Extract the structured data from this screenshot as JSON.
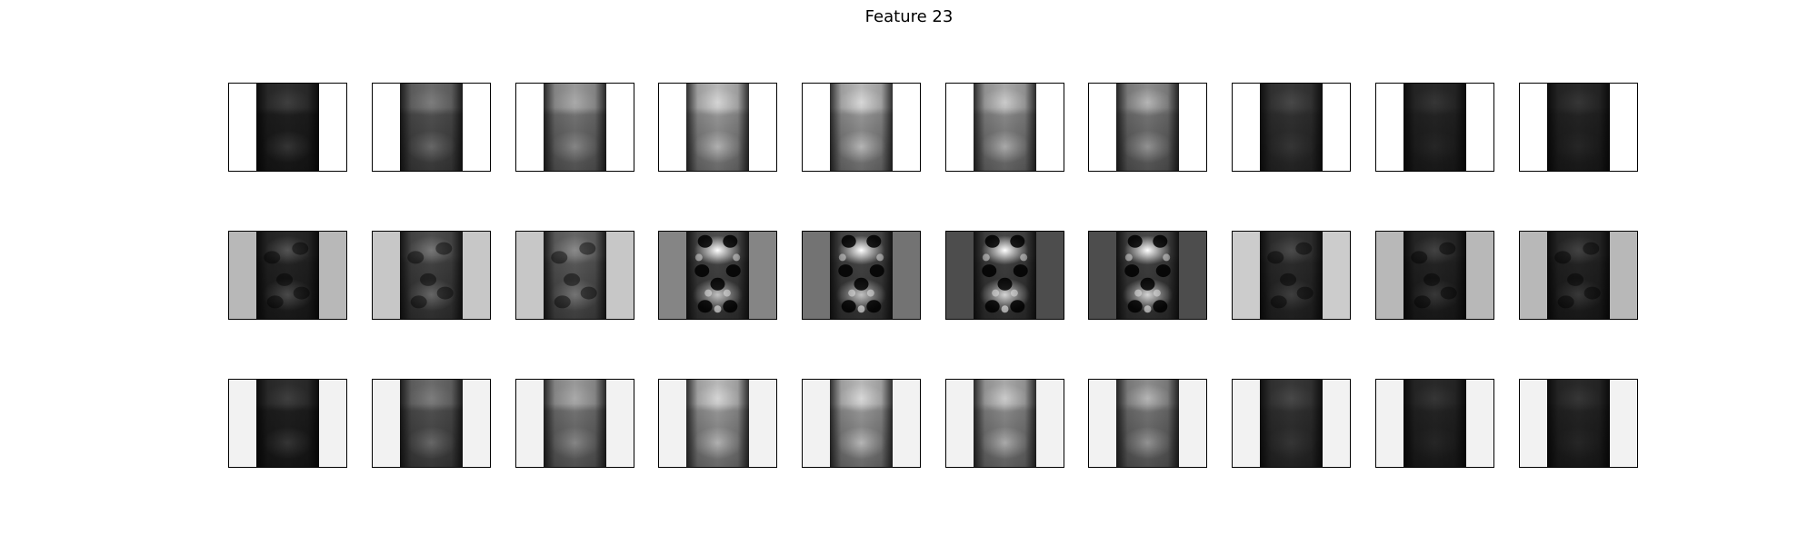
{
  "chart_data": {
    "type": "heatmap",
    "title": "Feature 23",
    "colormap": "grayscale",
    "rows": 3,
    "columns": 10,
    "panels": [
      [
        {
          "background": 1.0,
          "frame": "rgb",
          "stripe": 0.14,
          "top": 0.18,
          "top_blob": 0.04,
          "bottom_blob": 0.06,
          "mode": "smooth"
        },
        {
          "background": 1.0,
          "frame": "rgb",
          "stripe": 0.36,
          "top": 0.42,
          "top_blob": 0.06,
          "bottom_blob": 0.1,
          "mode": "smooth"
        },
        {
          "background": 1.0,
          "frame": "rgb",
          "stripe": 0.52,
          "top": 0.6,
          "top_blob": 0.08,
          "bottom_blob": 0.12,
          "mode": "smooth"
        },
        {
          "background": 1.0,
          "frame": "rgb",
          "stripe": 0.68,
          "top": 0.72,
          "top_blob": 0.2,
          "bottom_blob": 0.2,
          "mode": "smooth"
        },
        {
          "background": 1.0,
          "frame": "rgb",
          "stripe": 0.68,
          "top": 0.72,
          "top_blob": 0.22,
          "bottom_blob": 0.22,
          "mode": "smooth"
        },
        {
          "background": 1.0,
          "frame": "rgb",
          "stripe": 0.62,
          "top": 0.66,
          "top_blob": 0.2,
          "bottom_blob": 0.2,
          "mode": "smooth"
        },
        {
          "background": 1.0,
          "frame": "rgb",
          "stripe": 0.52,
          "top": 0.55,
          "top_blob": 0.18,
          "bottom_blob": 0.16,
          "mode": "smooth"
        },
        {
          "background": 1.0,
          "frame": "rgb",
          "stripe": 0.22,
          "top": 0.22,
          "top_blob": 0.04,
          "bottom_blob": 0.03,
          "mode": "smooth"
        },
        {
          "background": 1.0,
          "frame": "rgb",
          "stripe": 0.16,
          "top": 0.16,
          "top_blob": 0.03,
          "bottom_blob": 0.02,
          "mode": "smooth"
        },
        {
          "background": 1.0,
          "frame": "rgb",
          "stripe": 0.16,
          "top": 0.16,
          "top_blob": 0.03,
          "bottom_blob": 0.02,
          "mode": "smooth"
        }
      ],
      [
        {
          "background": 0.72,
          "frame": "rgb",
          "stripe": 0.16,
          "top": 0.16,
          "top_blob": 0.1,
          "bottom_blob": 0.1,
          "mode": "noisy"
        },
        {
          "background": 0.78,
          "frame": "rgb",
          "stripe": 0.3,
          "top": 0.3,
          "top_blob": 0.12,
          "bottom_blob": 0.12,
          "mode": "noisy"
        },
        {
          "background": 0.78,
          "frame": "rgb",
          "stripe": 0.4,
          "top": 0.4,
          "top_blob": 0.12,
          "bottom_blob": 0.12,
          "mode": "noisy"
        },
        {
          "background": 0.52,
          "frame": "rgb",
          "stripe": 0.3,
          "top": 0.3,
          "top_blob": 0.55,
          "bottom_blob": 0.35,
          "mode": "contrast"
        },
        {
          "background": 0.45,
          "frame": "rgb",
          "stripe": 0.3,
          "top": 0.3,
          "top_blob": 0.55,
          "bottom_blob": 0.35,
          "mode": "contrast"
        },
        {
          "background": 0.3,
          "frame": "rgb",
          "stripe": 0.28,
          "top": 0.28,
          "top_blob": 0.55,
          "bottom_blob": 0.4,
          "mode": "contrast"
        },
        {
          "background": 0.3,
          "frame": "rgb",
          "stripe": 0.28,
          "top": 0.28,
          "top_blob": 0.55,
          "bottom_blob": 0.4,
          "mode": "contrast"
        },
        {
          "background": 0.8,
          "frame": "rgb",
          "stripe": 0.2,
          "top": 0.2,
          "top_blob": 0.06,
          "bottom_blob": 0.06,
          "mode": "noisy"
        },
        {
          "background": 0.72,
          "frame": "rgb",
          "stripe": 0.16,
          "top": 0.16,
          "top_blob": 0.06,
          "bottom_blob": 0.06,
          "mode": "noisy"
        },
        {
          "background": 0.72,
          "frame": "rgb",
          "stripe": 0.16,
          "top": 0.16,
          "top_blob": 0.06,
          "bottom_blob": 0.06,
          "mode": "noisy"
        }
      ],
      [
        {
          "background": 0.95,
          "frame": "rgb",
          "stripe": 0.14,
          "top": 0.18,
          "top_blob": 0.04,
          "bottom_blob": 0.06,
          "mode": "smooth"
        },
        {
          "background": 0.95,
          "frame": "rgb",
          "stripe": 0.36,
          "top": 0.42,
          "top_blob": 0.06,
          "bottom_blob": 0.1,
          "mode": "smooth"
        },
        {
          "background": 0.95,
          "frame": "rgb",
          "stripe": 0.52,
          "top": 0.6,
          "top_blob": 0.08,
          "bottom_blob": 0.12,
          "mode": "smooth"
        },
        {
          "background": 0.95,
          "frame": "rgb",
          "stripe": 0.68,
          "top": 0.72,
          "top_blob": 0.2,
          "bottom_blob": 0.2,
          "mode": "smooth"
        },
        {
          "background": 0.95,
          "frame": "rgb",
          "stripe": 0.68,
          "top": 0.72,
          "top_blob": 0.22,
          "bottom_blob": 0.22,
          "mode": "smooth"
        },
        {
          "background": 0.95,
          "frame": "rgb",
          "stripe": 0.62,
          "top": 0.66,
          "top_blob": 0.2,
          "bottom_blob": 0.2,
          "mode": "smooth"
        },
        {
          "background": 0.95,
          "frame": "rgb",
          "stripe": 0.52,
          "top": 0.55,
          "top_blob": 0.18,
          "bottom_blob": 0.16,
          "mode": "smooth"
        },
        {
          "background": 0.95,
          "frame": "rgb",
          "stripe": 0.22,
          "top": 0.22,
          "top_blob": 0.04,
          "bottom_blob": 0.03,
          "mode": "smooth"
        },
        {
          "background": 0.95,
          "frame": "rgb",
          "stripe": 0.16,
          "top": 0.16,
          "top_blob": 0.03,
          "bottom_blob": 0.02,
          "mode": "smooth"
        },
        {
          "background": 0.95,
          "frame": "rgb",
          "stripe": 0.16,
          "top": 0.16,
          "top_blob": 0.03,
          "bottom_blob": 0.02,
          "mode": "smooth"
        }
      ]
    ]
  }
}
